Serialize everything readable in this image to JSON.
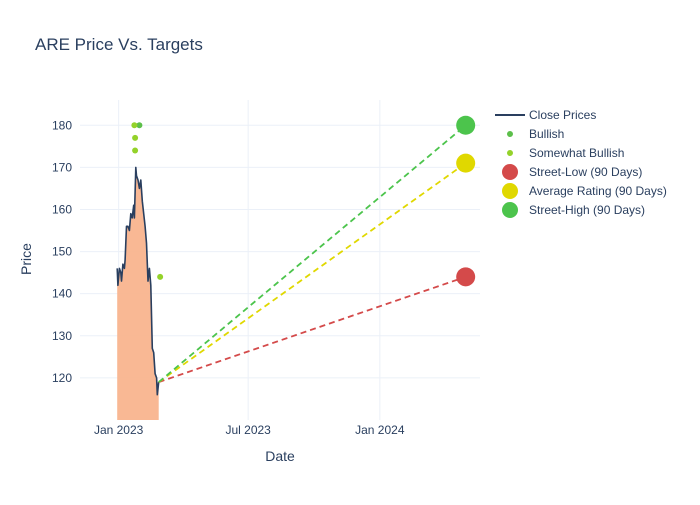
{
  "chart_data": {
    "type": "line",
    "title": "ARE Price Vs. Targets",
    "xlabel": "Date",
    "ylabel": "Price",
    "x_range": [
      "2022-11-08",
      "2024-05-20"
    ],
    "ylim": [
      110,
      186
    ],
    "x_ticks": [
      {
        "date": "2023-01-01",
        "label": "Jan 2023"
      },
      {
        "date": "2023-07-01",
        "label": "Jul 2023"
      },
      {
        "date": "2024-01-01",
        "label": "Jan 2024"
      }
    ],
    "y_ticks": [
      120,
      130,
      140,
      150,
      160,
      170,
      180
    ],
    "grid": true,
    "legend_placement": "top-right",
    "series": [
      {
        "name": "Close Prices",
        "kind": "line",
        "color": "#2a3f5f",
        "fill_color": "#f9b48e",
        "points": [
          [
            "2022-12-30",
            146
          ],
          [
            "2022-12-31",
            142
          ],
          [
            "2023-01-02",
            146
          ],
          [
            "2023-01-04",
            145
          ],
          [
            "2023-01-05",
            143
          ],
          [
            "2023-01-07",
            147
          ],
          [
            "2023-01-09",
            146
          ],
          [
            "2023-01-10",
            148
          ],
          [
            "2023-01-12",
            156
          ],
          [
            "2023-01-14",
            156
          ],
          [
            "2023-01-16",
            155
          ],
          [
            "2023-01-18",
            159
          ],
          [
            "2023-01-20",
            158
          ],
          [
            "2023-01-22",
            161
          ],
          [
            "2023-01-23",
            158
          ],
          [
            "2023-01-25",
            170
          ],
          [
            "2023-01-26",
            168
          ],
          [
            "2023-01-28",
            167
          ],
          [
            "2023-01-30",
            165
          ],
          [
            "2023-02-01",
            167
          ],
          [
            "2023-02-03",
            162
          ],
          [
            "2023-02-05",
            159
          ],
          [
            "2023-02-07",
            156
          ],
          [
            "2023-02-09",
            152
          ],
          [
            "2023-02-11",
            143
          ],
          [
            "2023-02-13",
            146
          ],
          [
            "2023-02-15",
            142
          ],
          [
            "2023-02-17",
            127
          ],
          [
            "2023-02-19",
            126
          ],
          [
            "2023-02-21",
            121
          ],
          [
            "2023-02-23",
            120
          ],
          [
            "2023-02-24",
            116
          ],
          [
            "2023-02-26",
            119
          ]
        ]
      },
      {
        "name": "Bullish",
        "kind": "markers",
        "color": "#5cbf4a",
        "points": [
          [
            "2023-01-30",
            180
          ]
        ]
      },
      {
        "name": "Somewhat Bullish",
        "kind": "markers",
        "color": "#94d22a",
        "points": [
          [
            "2023-01-23",
            180
          ],
          [
            "2023-01-24",
            177
          ],
          [
            "2023-01-24",
            174
          ],
          [
            "2023-02-28",
            144
          ]
        ]
      },
      {
        "name": "Street-Low (90 Days)",
        "kind": "target",
        "color": "#d44a4a",
        "from": [
          "2023-02-26",
          119
        ],
        "to": [
          "2024-04-30",
          144
        ]
      },
      {
        "name": "Average Rating (90 Days)",
        "kind": "target",
        "color": "#e0d800",
        "from": [
          "2023-02-26",
          119
        ],
        "to": [
          "2024-04-30",
          171
        ]
      },
      {
        "name": "Street-High (90 Days)",
        "kind": "target",
        "color": "#4cc44c",
        "from": [
          "2023-02-26",
          119
        ],
        "to": [
          "2024-04-30",
          180
        ]
      }
    ]
  }
}
